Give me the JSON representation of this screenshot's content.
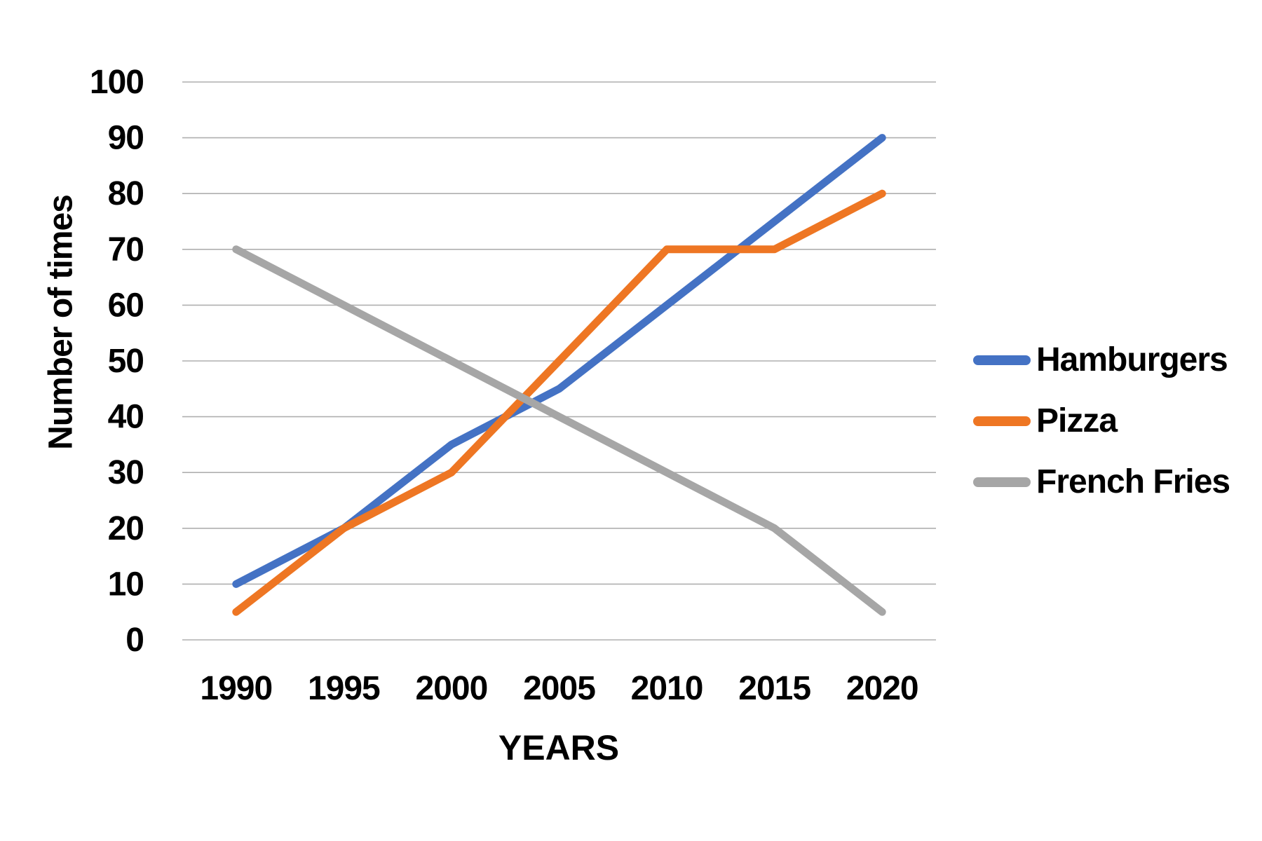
{
  "chart_data": {
    "type": "line",
    "title": "",
    "xlabel": "YEARS",
    "ylabel": "Number of times",
    "categories": [
      "1990",
      "1995",
      "2000",
      "2005",
      "2010",
      "2015",
      "2020"
    ],
    "series": [
      {
        "name": "Hamburgers",
        "color": "#4472C4",
        "values": [
          10,
          20,
          35,
          45,
          60,
          75,
          90
        ]
      },
      {
        "name": "Pizza",
        "color": "#EE7623",
        "values": [
          5,
          20,
          30,
          50,
          70,
          70,
          80
        ]
      },
      {
        "name": "French Fries",
        "color": "#A6A6A6",
        "values": [
          70,
          60,
          50,
          40,
          30,
          20,
          5
        ]
      }
    ],
    "ylim": [
      0,
      100
    ],
    "yticks": [
      0,
      10,
      20,
      30,
      40,
      50,
      60,
      70,
      80,
      90,
      100
    ],
    "grid": true,
    "legend_position": "right"
  },
  "colors": {
    "grid": "#AFAFAF",
    "text": "#000000",
    "background": "#FFFFFF"
  }
}
